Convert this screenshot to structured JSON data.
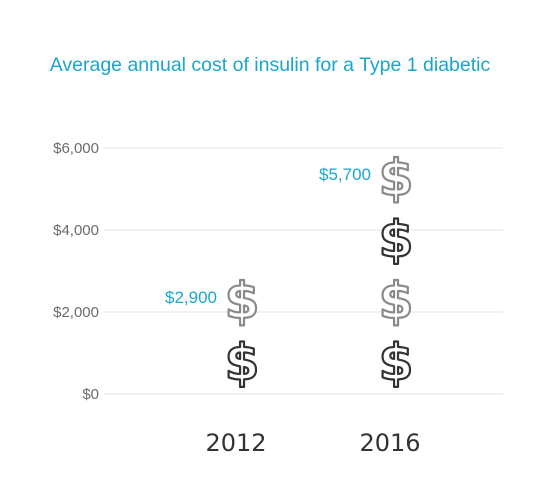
{
  "chart_data": {
    "type": "bar",
    "title": "Average annual cost of insulin for a Type 1 diabetic",
    "categories": [
      "2012",
      "2016"
    ],
    "values": [
      2900,
      5700
    ],
    "value_labels": [
      "$2,900",
      "$5,700"
    ],
    "yticks": [
      0,
      2000,
      4000,
      6000
    ],
    "ytick_labels": [
      "$0",
      "$2,000",
      "$4,000",
      "$6,000"
    ],
    "ylim": [
      0,
      6000
    ],
    "icon": "dollar-sign-icon",
    "icon_value": 1500,
    "icon_colors": [
      "#8a8a8a",
      "#333333"
    ],
    "title_color": "#1aa6c9",
    "label_color": "#1aa6c9",
    "grid": true
  }
}
